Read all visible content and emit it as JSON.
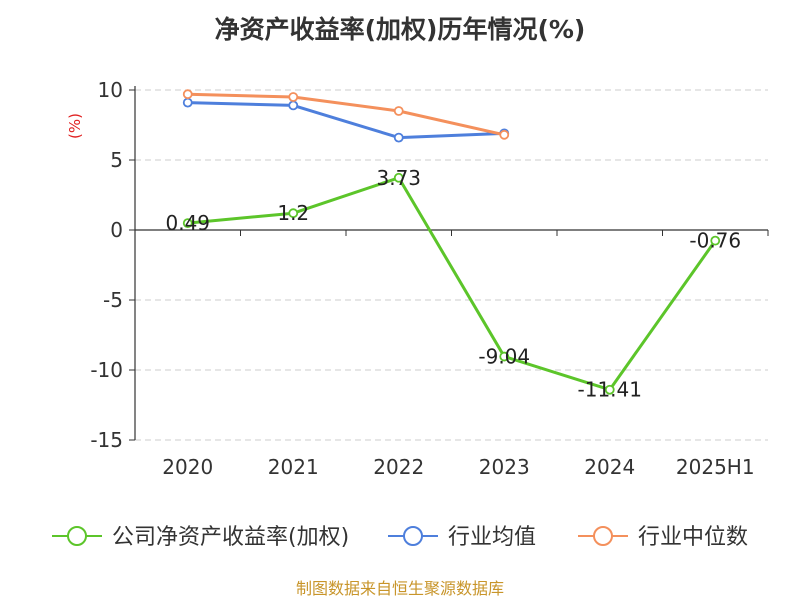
{
  "chart_data": {
    "type": "line",
    "title": "净资产收益率(加权)历年情况(%)",
    "ylabel": "(%)",
    "xlabel": "",
    "categories": [
      "2020",
      "2021",
      "2022",
      "2023",
      "2024",
      "2025H1"
    ],
    "ylim": [
      -15,
      10
    ],
    "yticks": [
      10,
      5,
      0,
      -5,
      -10,
      -15
    ],
    "grid": true,
    "legend_position": "bottom",
    "series": [
      {
        "name": "公司净资产收益率(加权)",
        "color": "#5cc52a",
        "values": [
          0.49,
          1.2,
          3.73,
          -9.04,
          -11.41,
          -0.76
        ],
        "labels": [
          "0.49",
          "1.2",
          "3.73",
          "-9.04",
          "-11.41",
          "-0.76"
        ]
      },
      {
        "name": "行业均值",
        "color": "#4e7fdc",
        "values": [
          9.1,
          8.9,
          6.6,
          6.9,
          null,
          null
        ]
      },
      {
        "name": "行业中位数",
        "color": "#f4905c",
        "values": [
          9.7,
          9.5,
          8.5,
          6.8,
          null,
          null
        ]
      }
    ]
  },
  "footer": {
    "source_text": "制图数据来自恒生聚源数据库",
    "source_color": "#c8952a"
  }
}
